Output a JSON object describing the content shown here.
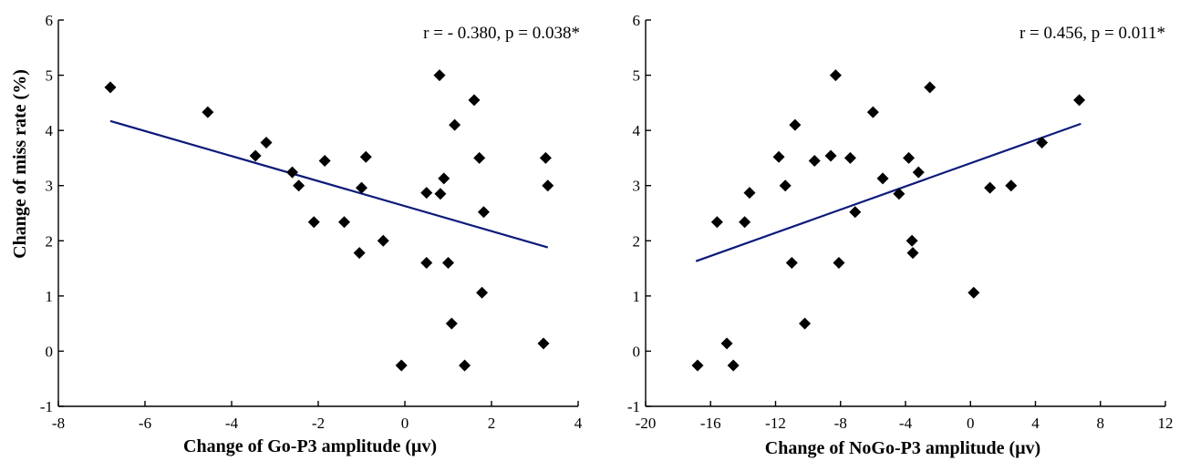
{
  "chart_data": [
    {
      "type": "scatter",
      "xlabel": "Change of Go-P3 amplitude (μv)",
      "ylabel": "Change of miss rate (%)",
      "annotation": "r = - 0.380, p = 0.038*",
      "xlim": [
        -8,
        4
      ],
      "ylim": [
        -1,
        6
      ],
      "xticks": [
        -8,
        -6,
        -4,
        -2,
        0,
        2,
        4
      ],
      "yticks": [
        -1,
        0,
        1,
        2,
        3,
        4,
        5,
        6
      ],
      "trendline": {
        "x": [
          -6.8,
          3.3
        ],
        "y": [
          4.17,
          1.88
        ]
      },
      "points": [
        [
          -6.8,
          4.78
        ],
        [
          -4.55,
          4.33
        ],
        [
          -3.45,
          3.54
        ],
        [
          -3.2,
          3.78
        ],
        [
          -2.6,
          3.24
        ],
        [
          -2.45,
          3.0
        ],
        [
          -2.1,
          2.34
        ],
        [
          -1.85,
          3.45
        ],
        [
          -1.4,
          2.34
        ],
        [
          -1.05,
          1.78
        ],
        [
          -1.0,
          2.96
        ],
        [
          -0.9,
          3.52
        ],
        [
          -0.5,
          2.0
        ],
        [
          -0.08,
          -0.26
        ],
        [
          0.5,
          2.87
        ],
        [
          0.5,
          1.6
        ],
        [
          0.8,
          5.0
        ],
        [
          0.82,
          2.85
        ],
        [
          0.9,
          3.13
        ],
        [
          1.0,
          1.6
        ],
        [
          1.08,
          0.5
        ],
        [
          1.15,
          4.1
        ],
        [
          1.38,
          -0.26
        ],
        [
          1.6,
          4.55
        ],
        [
          1.72,
          3.5
        ],
        [
          1.78,
          1.06
        ],
        [
          1.82,
          2.52
        ],
        [
          3.2,
          0.14
        ],
        [
          3.25,
          3.5
        ],
        [
          3.3,
          3.0
        ]
      ]
    },
    {
      "type": "scatter",
      "xlabel": "Change of NoGo-P3 amplitude (μv)",
      "ylabel": "",
      "annotation": "r = 0.456, p = 0.011*",
      "xlim": [
        -20,
        12
      ],
      "ylim": [
        -1,
        6
      ],
      "xticks": [
        -20,
        -16,
        -12,
        -8,
        -4,
        0,
        4,
        8,
        12
      ],
      "yticks": [
        -1,
        0,
        1,
        2,
        3,
        4,
        5,
        6
      ],
      "trendline": {
        "x": [
          -16.9,
          6.8
        ],
        "y": [
          1.63,
          4.12
        ]
      },
      "points": [
        [
          -16.8,
          -0.26
        ],
        [
          -15.6,
          2.34
        ],
        [
          -15.0,
          0.14
        ],
        [
          -14.6,
          -0.26
        ],
        [
          -13.6,
          2.87
        ],
        [
          -13.9,
          2.34
        ],
        [
          -11.8,
          3.52
        ],
        [
          -11.4,
          3.0
        ],
        [
          -11.0,
          1.6
        ],
        [
          -10.8,
          4.1
        ],
        [
          -10.2,
          0.5
        ],
        [
          -9.6,
          3.45
        ],
        [
          -8.6,
          3.54
        ],
        [
          -8.3,
          5.0
        ],
        [
          -8.1,
          1.6
        ],
        [
          -7.4,
          3.5
        ],
        [
          -7.1,
          2.52
        ],
        [
          -6.0,
          4.33
        ],
        [
          -5.4,
          3.13
        ],
        [
          -4.4,
          2.85
        ],
        [
          -3.8,
          3.5
        ],
        [
          -3.6,
          2.0
        ],
        [
          -3.55,
          1.78
        ],
        [
          -3.2,
          3.24
        ],
        [
          -2.5,
          4.78
        ],
        [
          0.2,
          1.06
        ],
        [
          1.2,
          2.96
        ],
        [
          2.5,
          3.0
        ],
        [
          4.4,
          3.78
        ],
        [
          6.7,
          4.55
        ]
      ]
    }
  ]
}
